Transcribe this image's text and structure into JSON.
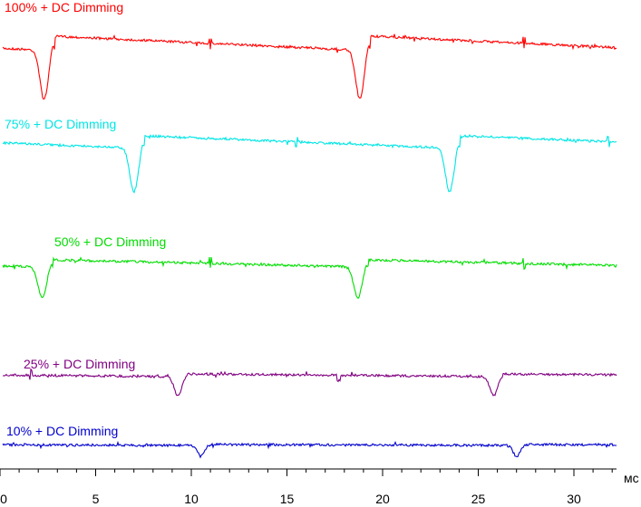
{
  "chart_data": {
    "type": "line",
    "x_unit": "мс",
    "xlim": [
      0,
      33
    ],
    "x_ticks": [
      0,
      5,
      10,
      15,
      20,
      25,
      30
    ],
    "y_axis_shown": false,
    "grid": false,
    "series": [
      {
        "name": "100% + DC Dimming",
        "color": "#ff0000",
        "baseline": 40,
        "dip_depth": 54,
        "dips": [
          2.3,
          18.8
        ],
        "dip_width": 0.55,
        "sawtooth_drop": 16,
        "small_glitches": [
          11,
          27.4
        ]
      },
      {
        "name": "75% + DC Dimming",
        "color": "#00e5e5",
        "baseline": 150,
        "dip_depth": 48,
        "dips": [
          7.0,
          23.5
        ],
        "dip_width": 0.55,
        "sawtooth_drop": 14,
        "small_glitches": [
          15.5,
          31.8
        ]
      },
      {
        "name": "50% + DC Dimming",
        "color": "#00dd00",
        "baseline": 287,
        "dip_depth": 34,
        "dips": [
          2.2,
          18.7
        ],
        "dip_width": 0.55,
        "sawtooth_drop": 8,
        "small_glitches": [
          11,
          27.4
        ]
      },
      {
        "name": "25% + DC Dimming",
        "color": "#800080",
        "baseline": 413,
        "dip_depth": 21,
        "dips": [
          9.3,
          25.8
        ],
        "dip_width": 0.5,
        "sawtooth_drop": 3,
        "small_glitches": [
          1.6,
          17.7
        ]
      },
      {
        "name": "10% + DC Dimming",
        "color": "#0000cc",
        "baseline": 491,
        "dip_depth": 12,
        "dips": [
          10.5,
          27.0
        ],
        "dip_width": 0.45,
        "sawtooth_drop": 1,
        "small_glitches": []
      }
    ]
  }
}
